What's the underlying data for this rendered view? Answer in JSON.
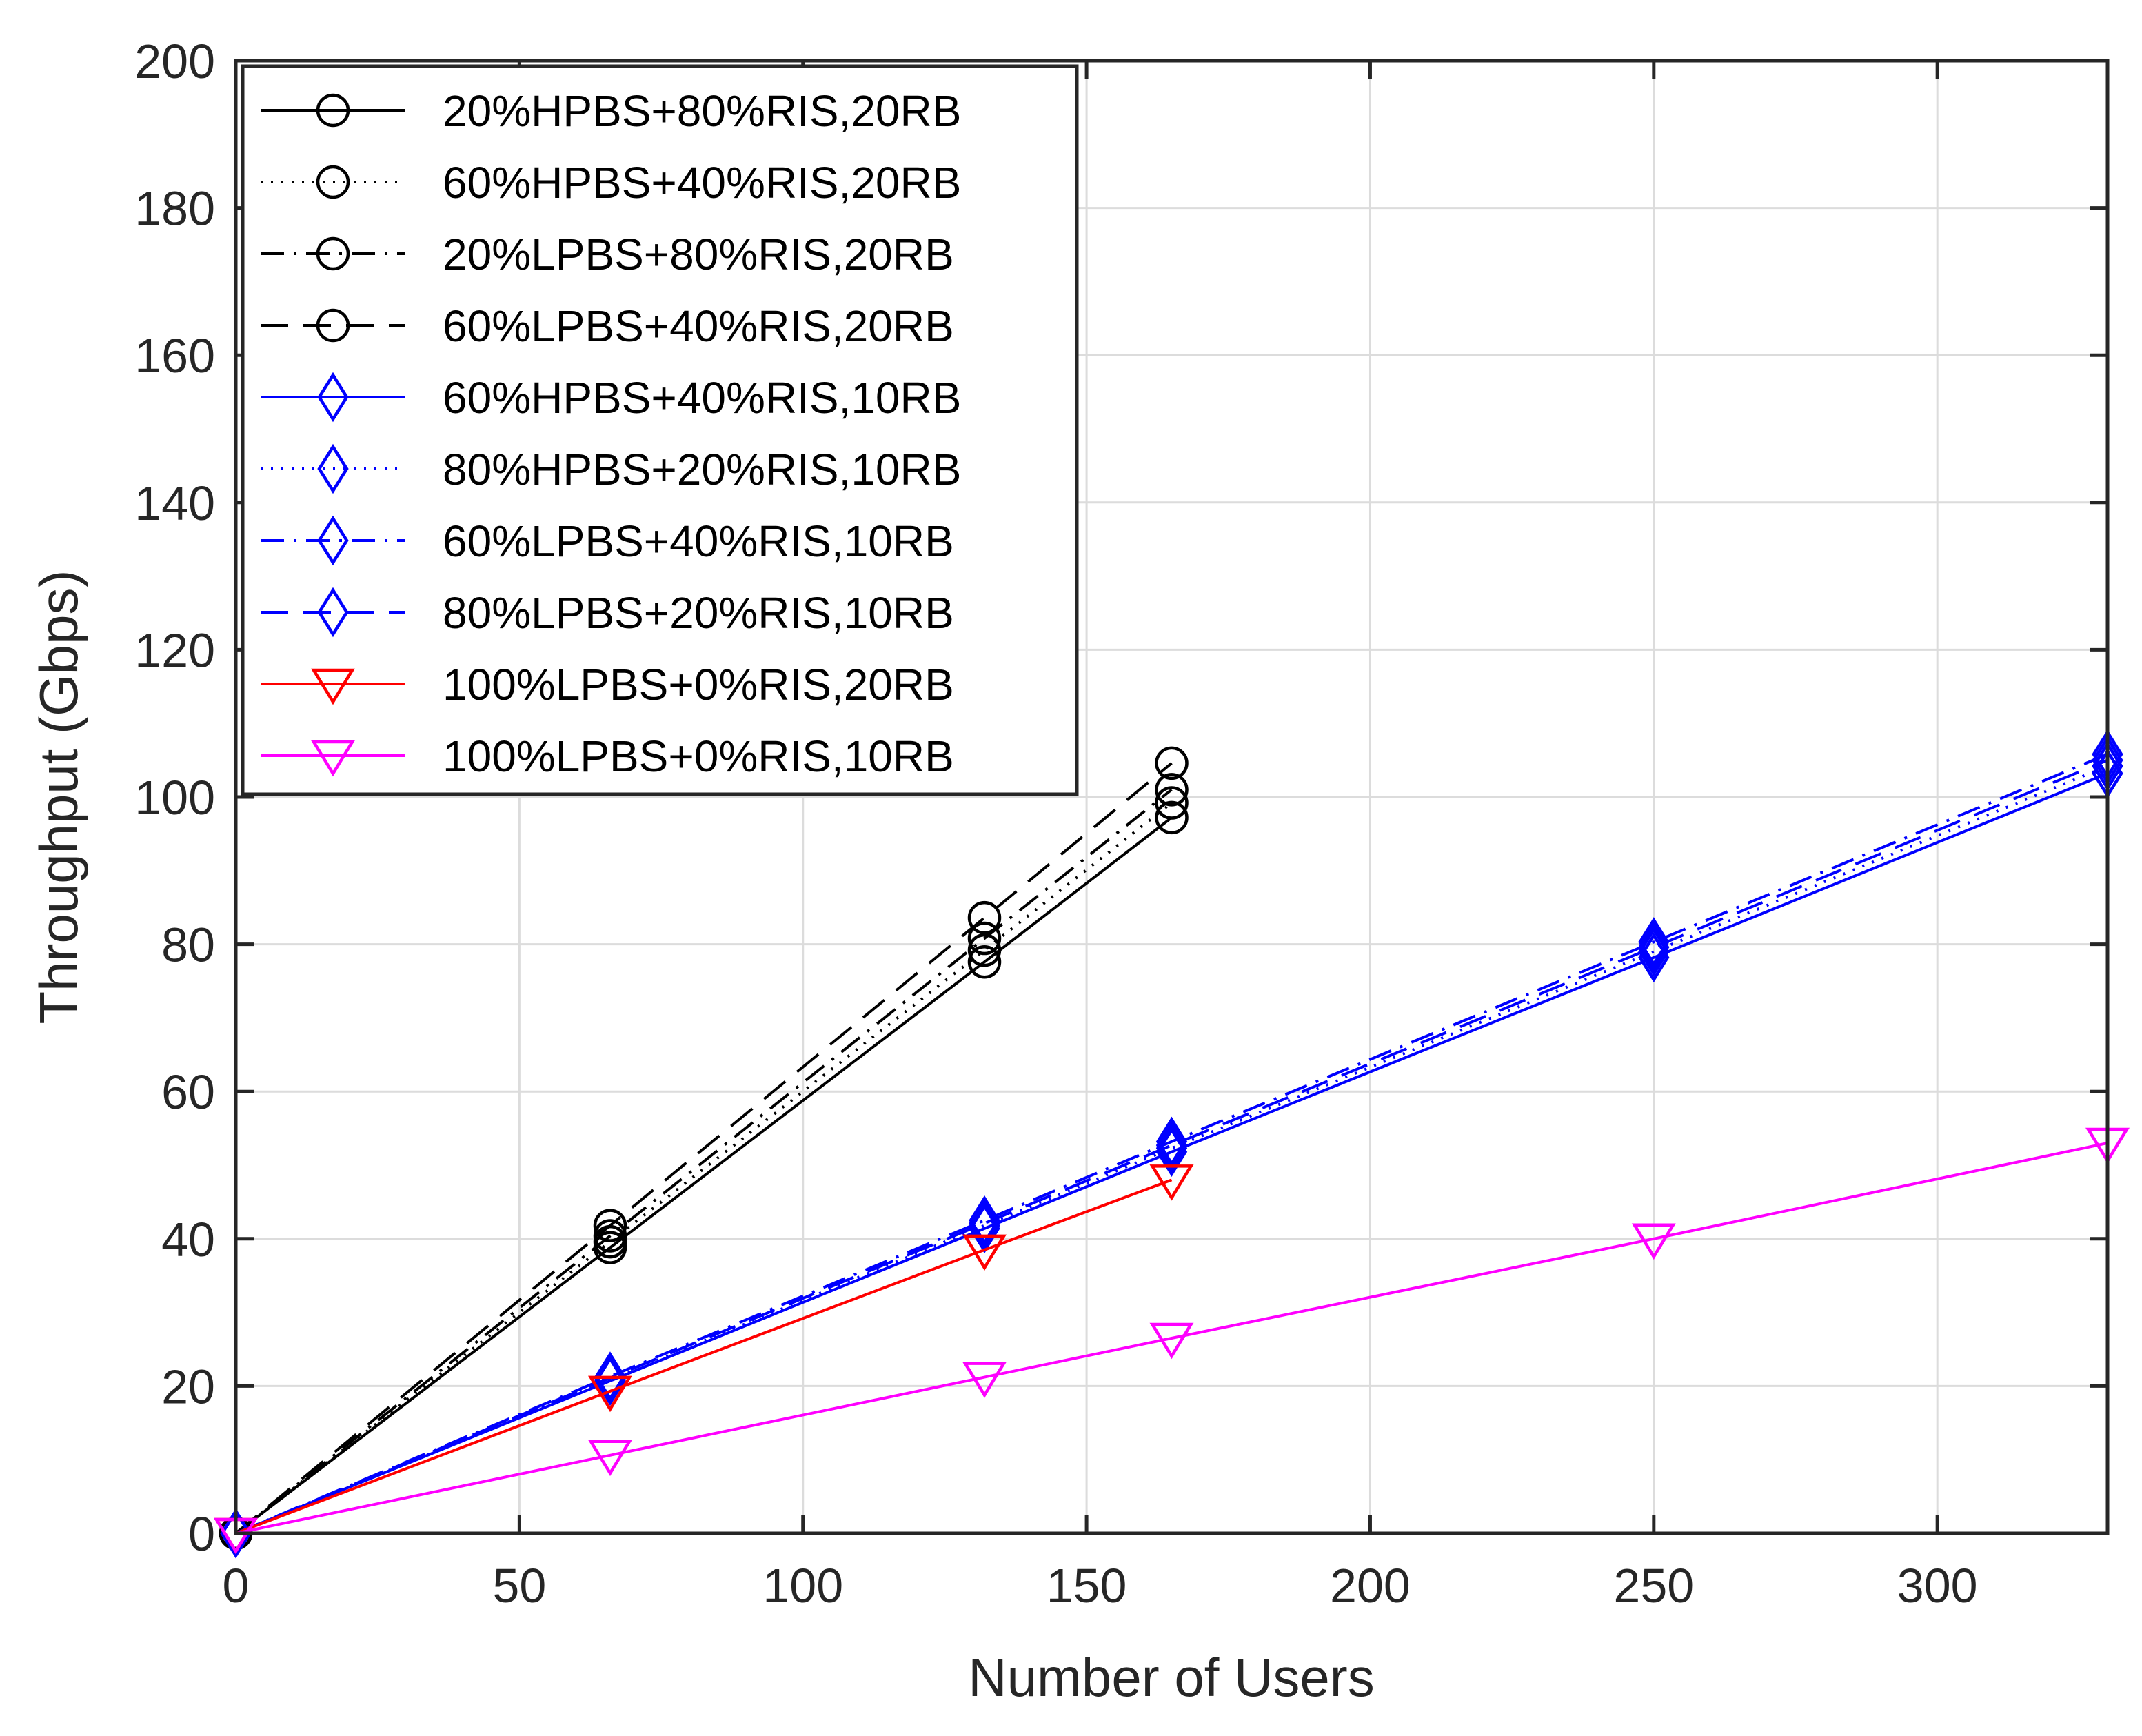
{
  "chart_data": {
    "type": "line",
    "xlabel": "Number of Users",
    "ylabel": "Throughput (Gbps)",
    "xlim": [
      0,
      330
    ],
    "ylim": [
      0,
      200
    ],
    "xticks": [
      0,
      50,
      100,
      150,
      200,
      250,
      300
    ],
    "yticks": [
      0,
      20,
      40,
      60,
      80,
      100,
      120,
      140,
      160,
      180,
      200
    ],
    "grid": true,
    "legend_location": "top-left",
    "series": [
      {
        "name": "20%HPBS+80%RIS,20RB",
        "color": "#000000",
        "dash": "solid",
        "marker": "circle",
        "x": [
          0,
          66,
          132,
          165
        ],
        "y": [
          0,
          38.8,
          77.6,
          97.2
        ]
      },
      {
        "name": "60%HPBS+40%RIS,20RB",
        "color": "#000000",
        "dash": "dotted",
        "marker": "circle",
        "x": [
          0,
          66,
          132,
          165
        ],
        "y": [
          0,
          39.6,
          79.2,
          99.2
        ]
      },
      {
        "name": "20%LPBS+80%RIS,20RB",
        "color": "#000000",
        "dash": "dashdot",
        "marker": "circle",
        "x": [
          0,
          66,
          132,
          165
        ],
        "y": [
          0,
          40.4,
          80.8,
          101.0
        ]
      },
      {
        "name": "60%LPBS+40%RIS,20RB",
        "color": "#000000",
        "dash": "dashed",
        "marker": "circle",
        "x": [
          0,
          66,
          132,
          165
        ],
        "y": [
          0,
          41.8,
          83.6,
          104.6
        ]
      },
      {
        "name": "60%HPBS+40%RIS,10RB",
        "color": "#0000ff",
        "dash": "solid",
        "marker": "diamond",
        "x": [
          0,
          66,
          132,
          165,
          250,
          330
        ],
        "y": [
          0,
          20.7,
          41.4,
          51.8,
          78.2,
          103.2
        ]
      },
      {
        "name": "80%HPBS+20%RIS,10RB",
        "color": "#0000ff",
        "dash": "dotted",
        "marker": "diamond",
        "x": [
          0,
          66,
          132,
          165,
          250,
          330
        ],
        "y": [
          0,
          20.9,
          41.8,
          52.3,
          79.0,
          104.2
        ]
      },
      {
        "name": "60%LPBS+40%RIS,10RB",
        "color": "#0000ff",
        "dash": "dashdot",
        "marker": "diamond",
        "x": [
          0,
          66,
          132,
          165,
          250,
          330
        ],
        "y": [
          0,
          21.3,
          42.5,
          53.2,
          80.3,
          105.8
        ]
      },
      {
        "name": "80%LPBS+20%RIS,10RB",
        "color": "#0000ff",
        "dash": "dashed",
        "marker": "diamond",
        "x": [
          0,
          66,
          132,
          165,
          250,
          330
        ],
        "y": [
          0,
          21.1,
          42.1,
          52.7,
          79.6,
          105.0
        ]
      },
      {
        "name": "100%LPBS+0%RIS,20RB",
        "color": "#ff0000",
        "dash": "solid",
        "marker": "triangle-down",
        "x": [
          0,
          66,
          132,
          165
        ],
        "y": [
          0,
          19.3,
          38.5,
          48.0
        ]
      },
      {
        "name": "100%LPBS+0%RIS,10RB",
        "color": "#ff00ff",
        "dash": "solid",
        "marker": "triangle-down",
        "x": [
          0,
          66,
          132,
          165,
          250,
          330
        ],
        "y": [
          0,
          10.6,
          21.2,
          26.5,
          40.0,
          53.0
        ]
      }
    ]
  }
}
